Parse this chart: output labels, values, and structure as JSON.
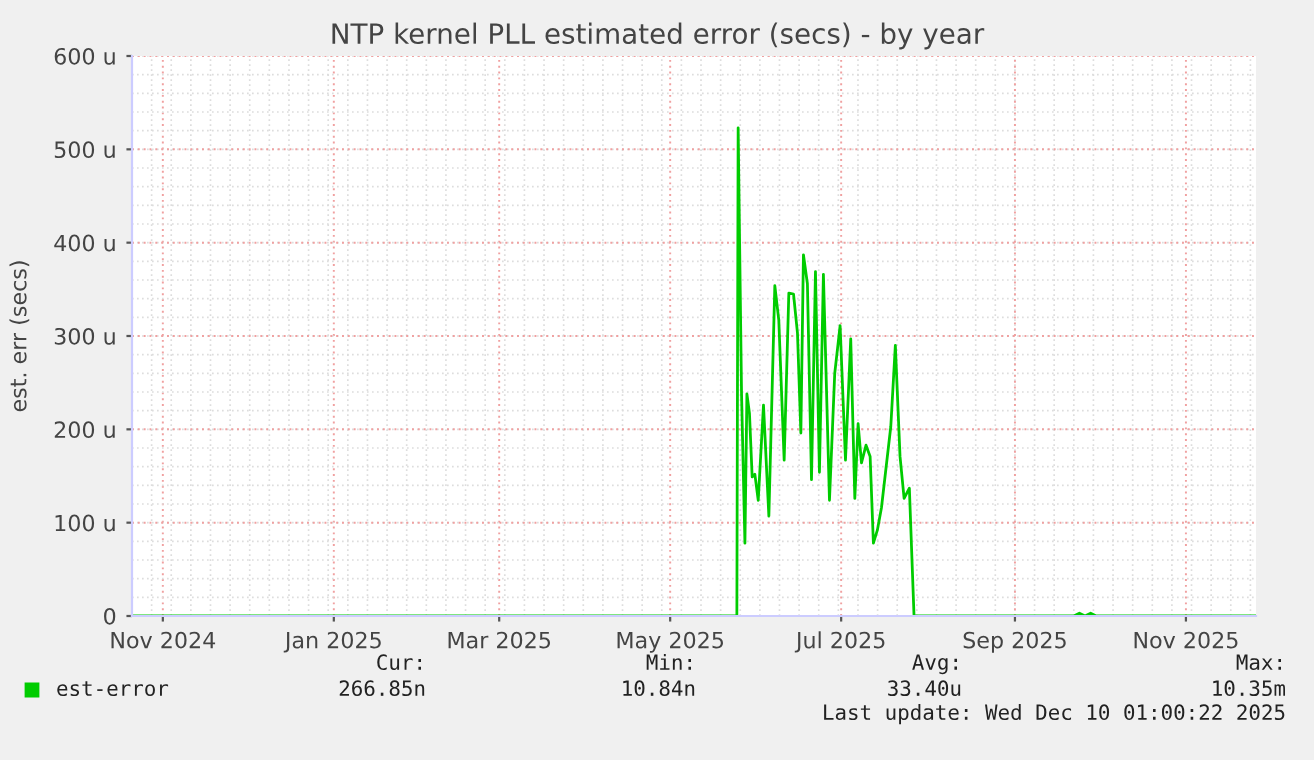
{
  "chart_data": {
    "type": "line",
    "title": "NTP kernel PLL estimated error (secs) - by year",
    "ylabel": "est. err (secs)",
    "series": [
      {
        "name": "est-error",
        "color": "#00cc00",
        "x": [
          "2024-10-21",
          "2025-05-24T19:00",
          "2025-05-25T06:00",
          "2025-05-26T11:00",
          "2025-05-27T16:00",
          "2025-05-28T09:00",
          "2025-05-29T07:00",
          "2025-05-30T06:00",
          "2025-05-31T05:00",
          "2025-06-01T10:00",
          "2025-06-03T07:00",
          "2025-06-05T05:00",
          "2025-06-07T08:00",
          "2025-06-08T18:00",
          "2025-06-10T16:00",
          "2025-06-12T08:00",
          "2025-06-14T00:00",
          "2025-06-15T10:00",
          "2025-06-16T15:00",
          "2025-06-17T13:00",
          "2025-06-18T23:00",
          "2025-06-20T10:00",
          "2025-06-21T20:00",
          "2025-06-23T06:00",
          "2025-06-24T16:00",
          "2025-06-26T20:00",
          "2025-06-28T17:00",
          "2025-06-30T15:00",
          "2025-07-02T13:00",
          "2025-07-04T10:00",
          "2025-07-05T21:00",
          "2025-07-07T01:00",
          "2025-07-08T06:00",
          "2025-07-09T21:00",
          "2025-07-11T08:00",
          "2025-07-12T12:00",
          "2025-07-13T22:00",
          "2025-07-15T09:00",
          "2025-07-18T17:00",
          "2025-07-20T08:00",
          "2025-07-22T00:00",
          "2025-07-23T11:00",
          "2025-07-25T08:00",
          "2025-07-27T00:00",
          "2025-09-22",
          "2025-09-24",
          "2025-09-26",
          "2025-09-28",
          "2025-09-30",
          "2025-11-26"
        ],
        "values": [
          0,
          0,
          523,
          238,
          78,
          238,
          217,
          149,
          152,
          124,
          226,
          107,
          354,
          317,
          167,
          346,
          345,
          303,
          196,
          387,
          356,
          146,
          369,
          154,
          366,
          124,
          260,
          311,
          167,
          297,
          126,
          206,
          164,
          183,
          171,
          78,
          92,
          116,
          203,
          290,
          171,
          126,
          137,
          0,
          0,
          3,
          0,
          3,
          0,
          0
        ]
      }
    ],
    "xlim": [
      "2024-10-21",
      "2025-11-26"
    ],
    "xticks": [
      {
        "value": "2024-11-01",
        "label": "Nov 2024"
      },
      {
        "value": "2025-01-01",
        "label": "Jan 2025"
      },
      {
        "value": "2025-03-01",
        "label": "Mar 2025"
      },
      {
        "value": "2025-05-01",
        "label": "May 2025"
      },
      {
        "value": "2025-07-01",
        "label": "Jul 2025"
      },
      {
        "value": "2025-09-01",
        "label": "Sep 2025"
      },
      {
        "value": "2025-11-01",
        "label": "Nov 2025"
      }
    ],
    "ylim": [
      0,
      600
    ],
    "yticks": [
      0,
      {
        "value": 100,
        "label": "100 u"
      },
      {
        "value": 200,
        "label": "200 u"
      },
      {
        "value": 300,
        "label": "300 u"
      },
      {
        "value": 400,
        "label": "400 u"
      },
      {
        "value": 500,
        "label": "500 u"
      },
      {
        "value": 600,
        "label": "600 u"
      }
    ],
    "grid": true,
    "legend": "bottom left",
    "line_style": "solid",
    "annotations": [
      "Cur:",
      "266.85n",
      "Min:",
      "10.84n",
      "Avg:",
      "33.40u",
      "Max:",
      "10.35m",
      "Last update: Wed Dec 10 01:00:22 2025"
    ]
  }
}
